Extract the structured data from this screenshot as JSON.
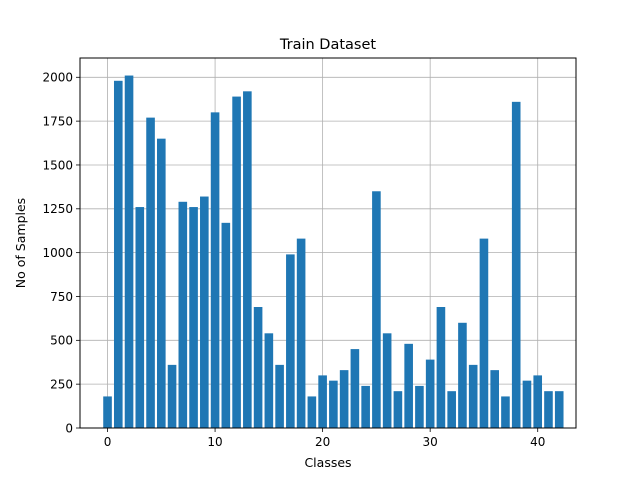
{
  "chart_data": {
    "type": "bar",
    "title": "Train Dataset",
    "xlabel": "Classes",
    "ylabel": "No of Samples",
    "xlim": [
      -2.56,
      43.56
    ],
    "ylim": [
      0,
      2110
    ],
    "grid": true,
    "bar_color": "#1f77b4",
    "x_ticks": [
      0,
      10,
      20,
      30,
      40
    ],
    "y_ticks": [
      0,
      250,
      500,
      750,
      1000,
      1250,
      1500,
      1750,
      2000
    ],
    "x": [
      0,
      1,
      2,
      3,
      4,
      5,
      6,
      7,
      8,
      9,
      10,
      11,
      12,
      13,
      14,
      15,
      16,
      17,
      18,
      19,
      20,
      21,
      22,
      23,
      24,
      25,
      26,
      27,
      28,
      29,
      30,
      31,
      32,
      33,
      34,
      35,
      36,
      37,
      38,
      39,
      40,
      41,
      42
    ],
    "values": [
      180,
      1980,
      2010,
      1260,
      1770,
      1650,
      360,
      1290,
      1260,
      1320,
      1800,
      1170,
      1890,
      1920,
      690,
      540,
      360,
      990,
      1080,
      180,
      300,
      270,
      330,
      450,
      240,
      1350,
      540,
      210,
      480,
      240,
      390,
      690,
      210,
      600,
      360,
      1080,
      330,
      180,
      1860,
      270,
      300,
      210,
      210
    ]
  }
}
